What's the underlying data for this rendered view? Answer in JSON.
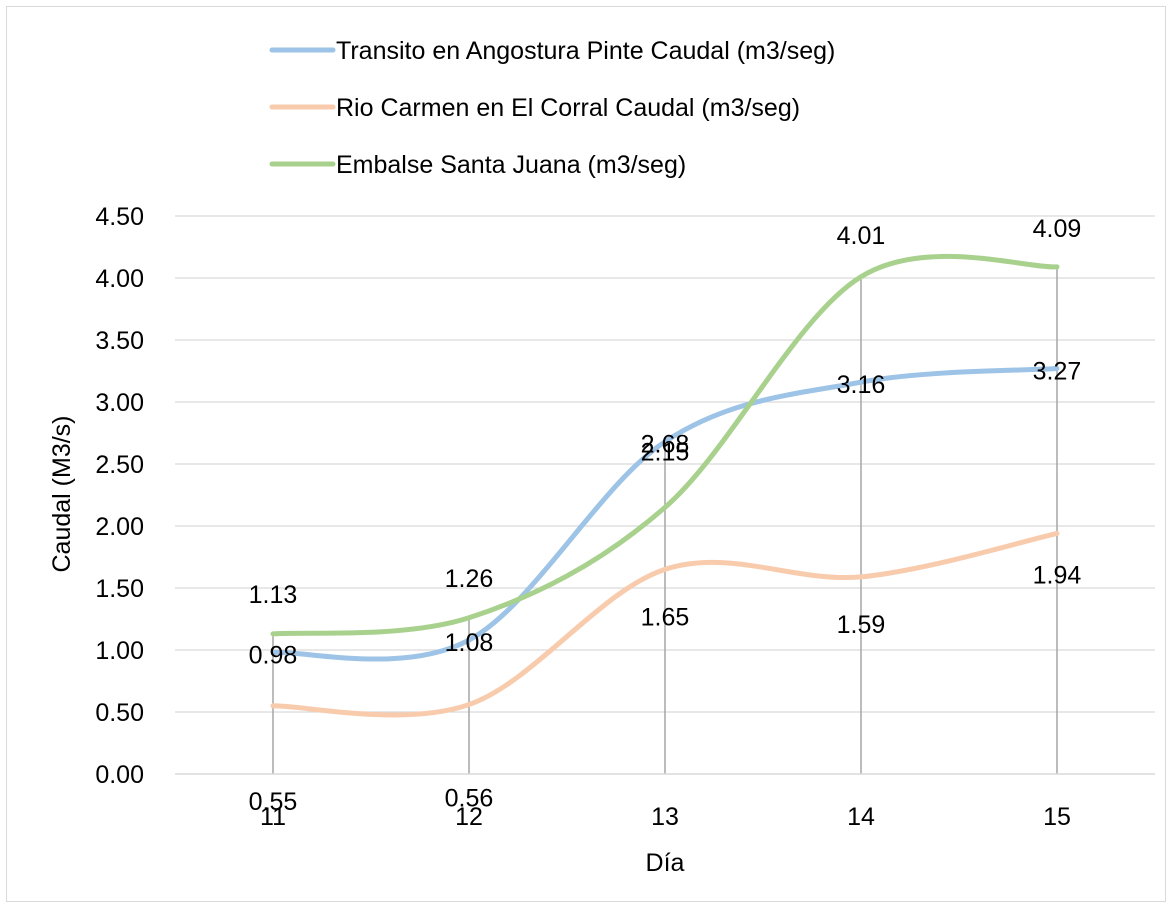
{
  "chart_data": {
    "type": "line",
    "title": "",
    "xlabel": "Día",
    "ylabel": "Caudal (M3/s)",
    "categories": [
      "11",
      "12",
      "13",
      "14",
      "15"
    ],
    "ylim": [
      0,
      4.5
    ],
    "yticks": [
      "0.00",
      "0.50",
      "1.00",
      "1.50",
      "2.00",
      "2.50",
      "3.00",
      "3.50",
      "4.00",
      "4.50"
    ],
    "grid": "horizontal",
    "smooth": true,
    "legend_position": "top",
    "drop_lines": true,
    "series": [
      {
        "name": "Transito en Angostura Pinte Caudal (m3/seg)",
        "color": "#9dc3e6",
        "values": [
          0.98,
          1.08,
          2.68,
          3.16,
          3.27
        ],
        "labels": [
          "0.98",
          "1.08",
          "2.68",
          "3.16",
          "3.27"
        ]
      },
      {
        "name": "Rio Carmen en El Corral Caudal (m3/seg)",
        "color": "#f8cbad",
        "values": [
          0.55,
          0.56,
          1.65,
          1.59,
          1.94
        ],
        "labels": [
          "0.55",
          "0.56",
          "1.65",
          "1.59",
          "1.94"
        ]
      },
      {
        "name": "Embalse Santa Juana (m3/seg)",
        "color": "#a9d18e",
        "values": [
          1.13,
          1.26,
          2.15,
          4.01,
          4.09
        ],
        "labels": [
          "1.13",
          "1.26",
          "2.15",
          "4.01",
          "4.09"
        ]
      }
    ]
  }
}
